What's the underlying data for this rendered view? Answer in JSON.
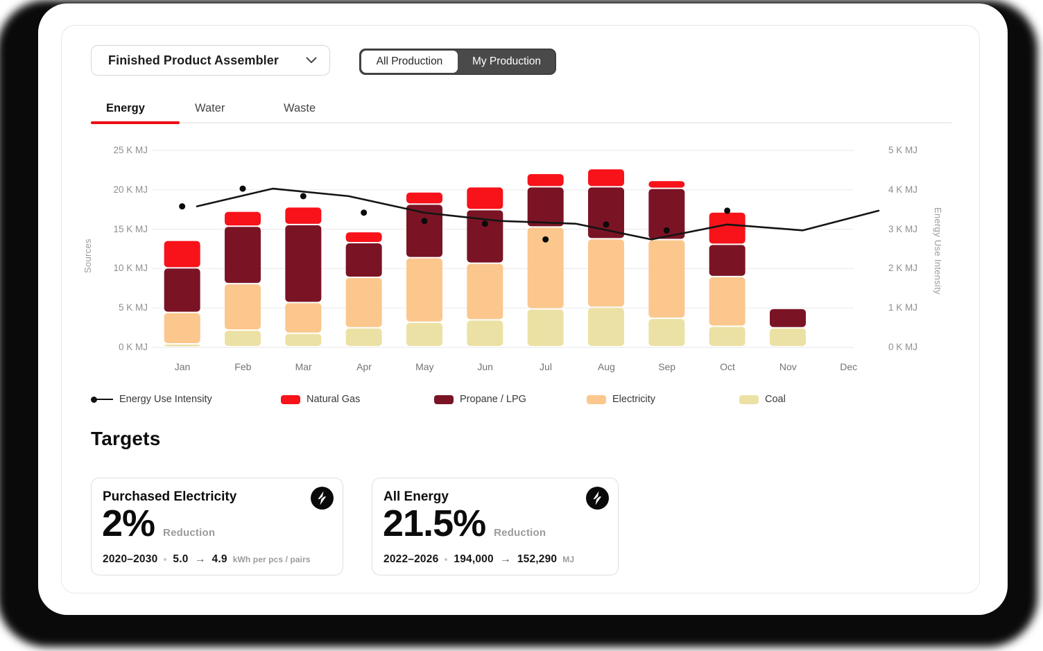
{
  "header": {
    "dropdown_label": "Finished Product Assembler",
    "toggle": {
      "options": [
        "All Production",
        "My Production"
      ],
      "selected": "My Production"
    }
  },
  "tabs": [
    {
      "label": "Energy",
      "active": true
    },
    {
      "label": "Water",
      "active": false
    },
    {
      "label": "Waste",
      "active": false
    }
  ],
  "chart_data": {
    "type": "stacked-bar-with-line",
    "categories": [
      "Jan",
      "Feb",
      "Mar",
      "Apr",
      "May",
      "Jun",
      "Jul",
      "Aug",
      "Sep",
      "Oct",
      "Nov",
      "Dec"
    ],
    "left_axis": {
      "label": "Sources",
      "unit": "K MJ",
      "min": 0,
      "max": 25,
      "tick_labels": [
        "0 K MJ",
        "5 K MJ",
        "10 K MJ",
        "15 K MJ",
        "20 K MJ",
        "25 K MJ"
      ]
    },
    "right_axis": {
      "label": "Energy Use Intensity",
      "unit": "K MJ",
      "min": 0,
      "max": 5,
      "tick_labels": [
        "0 K MJ",
        "1 K MJ",
        "2 K MJ",
        "3 K MJ",
        "4 K MJ",
        "5 K MJ"
      ]
    },
    "grid": "horizontal",
    "bar_series": [
      {
        "name": "Coal",
        "color": "#ece1a4",
        "values": [
          0.35,
          2.1,
          1.7,
          2.4,
          3.1,
          3.4,
          4.8,
          5.0,
          3.6,
          2.6,
          2.4,
          0
        ]
      },
      {
        "name": "Electricity",
        "color": "#fbc78d",
        "values": [
          4.0,
          5.9,
          3.9,
          6.4,
          8.2,
          7.2,
          10.4,
          8.7,
          10.0,
          6.3,
          0,
          0
        ]
      },
      {
        "name": "Propane / LPG",
        "color": "#7a1425",
        "values": [
          5.65,
          7.3,
          9.9,
          4.4,
          6.8,
          6.8,
          5.1,
          6.6,
          6.5,
          4.1,
          2.45,
          0
        ]
      },
      {
        "name": "Natural Gas",
        "color": "#f8121a",
        "values": [
          3.5,
          1.9,
          2.25,
          1.4,
          1.55,
          2.9,
          1.7,
          2.3,
          1.0,
          4.1,
          0,
          0
        ]
      }
    ],
    "line_series": {
      "name": "Energy Use Intensity",
      "axis": "right",
      "color": "#141414",
      "values": [
        3.58,
        4.03,
        3.84,
        3.42,
        3.21,
        3.14,
        2.74,
        3.12,
        2.97,
        3.47
      ]
    },
    "legend": [
      {
        "label": "Energy Use Intensity",
        "type": "line"
      },
      {
        "label": "Natural Gas",
        "type": "swatch",
        "color": "#f8121a"
      },
      {
        "label": "Propane / LPG",
        "type": "swatch",
        "color": "#7a1425"
      },
      {
        "label": "Electricity",
        "type": "swatch",
        "color": "#fbc78d"
      },
      {
        "label": "Coal",
        "type": "swatch",
        "color": "#ece1a4"
      }
    ]
  },
  "targets": {
    "heading": "Targets",
    "separator": "·",
    "arrow": "→",
    "cards": [
      {
        "title": "Purchased Electricity",
        "percent": "2%",
        "percent_label": "Reduction",
        "range": "2020–2030",
        "from": "5.0",
        "to": "4.9",
        "unit": "kWh per pcs / pairs"
      },
      {
        "title": "All Energy",
        "percent": "21.5%",
        "percent_label": "Reduction",
        "range": "2022–2026",
        "from": "194,000",
        "to": "152,290",
        "unit": "MJ"
      }
    ]
  }
}
